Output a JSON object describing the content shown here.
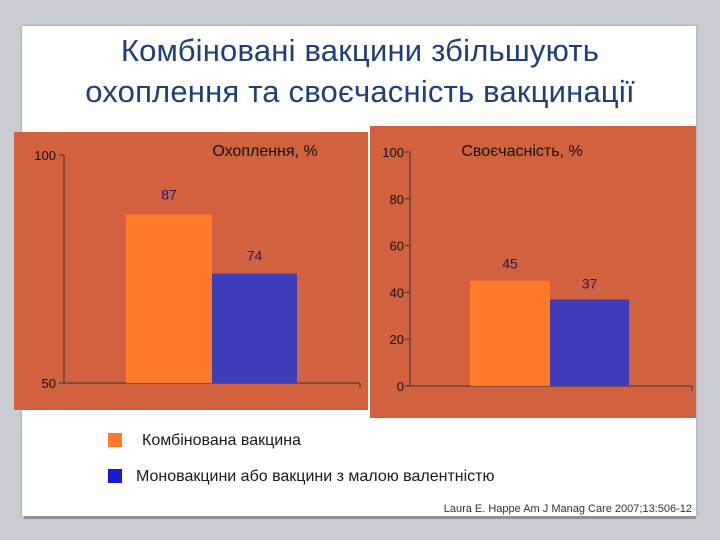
{
  "title": {
    "line1": "Комбіновані вакцини збільшують",
    "line2": "охоплення та своєчасність вакцинації"
  },
  "colors": {
    "panel": "#d2613f",
    "combined": "#ff7a2a",
    "mono": "#3d3db8"
  },
  "chart_data": [
    {
      "type": "bar",
      "title": "Охоплення, %",
      "categories": [
        "Комбінована вакцина",
        "Моновакцини або вакцини з малою валентністю"
      ],
      "values": [
        87,
        74
      ],
      "data_labels": [
        "87",
        "74"
      ],
      "ylim": [
        50,
        100
      ],
      "y_ticks": [
        50,
        100
      ],
      "y_tick_labels": [
        "50",
        "100"
      ]
    },
    {
      "type": "bar",
      "title": "Своєчасність, %",
      "categories": [
        "Комбінована вакцина",
        "Моновакцини або вакцини з малою валентністю"
      ],
      "values": [
        45,
        37
      ],
      "data_labels": [
        "45",
        "37"
      ],
      "ylim": [
        0,
        100
      ],
      "y_ticks": [
        0,
        20,
        40,
        60,
        80,
        100
      ],
      "y_tick_labels": [
        "0",
        "20",
        "40",
        "60",
        "80",
        "100"
      ]
    }
  ],
  "legend": [
    {
      "label": "Комбінована вакцина",
      "color": "#ff7a2a"
    },
    {
      "label": "Моновакцини або вакцини з малою валентністю",
      "color": "#1a1ad6"
    }
  ],
  "source": "Laura E. Happe Am J Manag Care 2007;13:506-12"
}
